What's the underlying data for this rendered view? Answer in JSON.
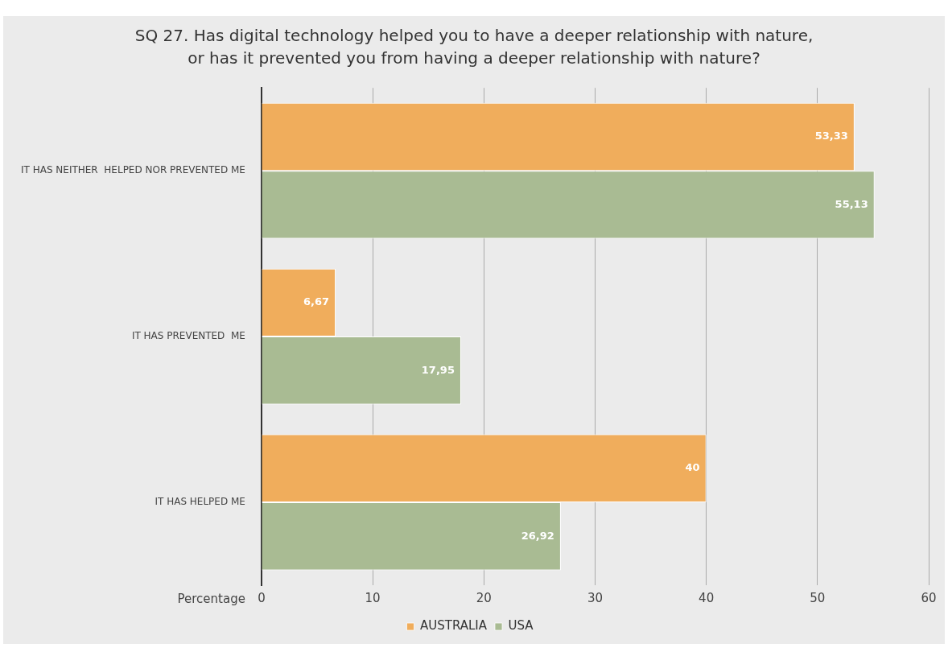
{
  "chart_data": {
    "type": "bar",
    "orientation": "horizontal",
    "title": "SQ 27. Has digital technology helped you to have a deeper relationship with nature,\nor has it prevented you from having a deeper relationship with nature?",
    "xlabel": "Percentage",
    "categories": [
      "IT HAS NEITHER  HELPED NOR PREVENTED ME",
      "IT HAS PREVENTED  ME",
      "IT HAS HELPED ME"
    ],
    "series": [
      {
        "name": "AUSTRALIA",
        "color": "#f0ad5c",
        "values": [
          53.33,
          6.67,
          40
        ],
        "value_labels": [
          "53,33",
          "6,67",
          "40"
        ]
      },
      {
        "name": "USA",
        "color": "#a9bb93",
        "values": [
          55.13,
          17.95,
          26.92
        ],
        "value_labels": [
          "55,13",
          "17,95",
          "26,92"
        ]
      }
    ],
    "xlim": [
      0,
      60
    ],
    "xticks": [
      0,
      10,
      20,
      30,
      40,
      50,
      60
    ],
    "grid": "x",
    "legend": "bottom"
  }
}
